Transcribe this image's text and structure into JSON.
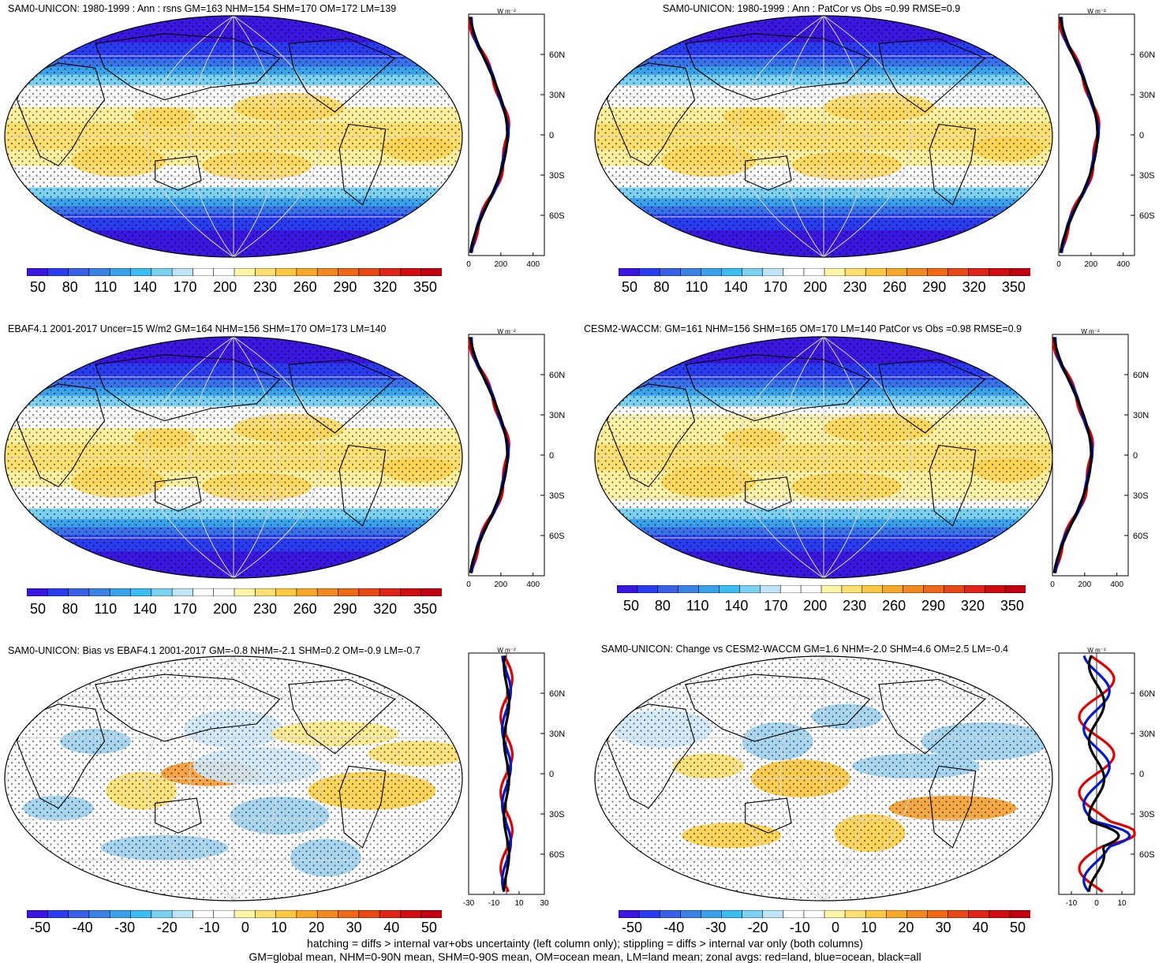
{
  "colors": {
    "mean_scale": [
      "#3a16e0",
      "#2a3cf0",
      "#3a60e8",
      "#3a82e6",
      "#3aa2ea",
      "#3cbdf2",
      "#7cd0f0",
      "#bfe4f6",
      "#ffffff",
      "#ffffff",
      "#fff4a8",
      "#ffe070",
      "#fcc840",
      "#f8a828",
      "#f48820",
      "#ee6818",
      "#e84818",
      "#e02418",
      "#d00c10",
      "#c00010"
    ],
    "diff_scale": [
      "#3a16e0",
      "#2a3cf0",
      "#3a60e8",
      "#3a82e6",
      "#3aa2ea",
      "#3cbdf2",
      "#7cd0f0",
      "#bfe4f6",
      "#ffffff",
      "#ffffff",
      "#fff4a8",
      "#ffe070",
      "#fcc840",
      "#f8a828",
      "#f48820",
      "#ee6818",
      "#e84818",
      "#e02418",
      "#d00c10",
      "#c00010"
    ],
    "land_line": "#e00000",
    "ocean_line": "#0018d0",
    "all_line": "#000000"
  },
  "panels": [
    {
      "title": "SAM0-UNICON: 1980-1999 : Ann : rsns GM=163 NHM=154 SHM=170 OM=172 LM=139",
      "kind": "mean",
      "colorbar_labels": [
        "50",
        "80",
        "110",
        "140",
        "170",
        "200",
        "230",
        "260",
        "290",
        "320",
        "350"
      ],
      "zonal": {
        "unit": "W m⁻²",
        "xticks": [
          "0",
          "200",
          "400"
        ],
        "yticks": [
          "60N",
          "30N",
          "0",
          "30S",
          "60S"
        ]
      }
    },
    {
      "title": "SAM0-UNICON: 1980-1999 : Ann : PatCor vs Obs =0.99 RMSE=0.9",
      "kind": "mean",
      "colorbar_labels": [
        "50",
        "80",
        "110",
        "140",
        "170",
        "200",
        "230",
        "260",
        "290",
        "320",
        "350"
      ],
      "zonal": {
        "unit": "W m⁻²",
        "xticks": [
          "0",
          "200",
          "400"
        ],
        "yticks": [
          "60N",
          "30N",
          "0",
          "30S",
          "60S"
        ]
      }
    },
    {
      "title": "EBAF4.1 2001-2017 Uncer=15 W/m2 GM=164 NHM=156 SHM=170 OM=173 LM=140",
      "kind": "mean",
      "colorbar_labels": [
        "50",
        "80",
        "110",
        "140",
        "170",
        "200",
        "230",
        "260",
        "290",
        "320",
        "350"
      ],
      "zonal": {
        "unit": "W m⁻²",
        "xticks": [
          "0",
          "200",
          "400"
        ],
        "yticks": [
          "60N",
          "30N",
          "0",
          "30S",
          "60S"
        ]
      }
    },
    {
      "title": "CESM2-WACCM: GM=161 NHM=156 SHM=165 OM=170 LM=140 PatCor vs Obs =0.98 RMSE=0.9",
      "kind": "mean",
      "colorbar_labels": [
        "50",
        "80",
        "110",
        "140",
        "170",
        "200",
        "230",
        "260",
        "290",
        "320",
        "350"
      ],
      "zonal": {
        "unit": "W m⁻²",
        "xticks": [
          "0",
          "200",
          "400"
        ],
        "yticks": [
          "60N",
          "30N",
          "0",
          "30S",
          "60S"
        ]
      }
    },
    {
      "title": "SAM0-UNICON: Bias vs EBAF4.1 2001-2017 GM=-0.8 NHM=-2.1 SHM=0.2 OM=-0.9 LM=-0.7",
      "kind": "diff",
      "colorbar_labels": [
        "-50",
        "-40",
        "-30",
        "-20",
        "-10",
        "0",
        "10",
        "20",
        "30",
        "40",
        "50"
      ],
      "zonal": {
        "unit": "W m⁻²",
        "xticks": [
          "-30",
          "-10",
          "10",
          "30"
        ],
        "yticks": [
          "60N",
          "30N",
          "0",
          "30S",
          "60S"
        ]
      }
    },
    {
      "title": "SAM0-UNICON: Change vs CESM2-WACCM GM=1.6 NHM=-2.0 SHM=4.6 OM=2.5 LM=-0.4",
      "kind": "diff",
      "colorbar_labels": [
        "-50",
        "-40",
        "-30",
        "-20",
        "-10",
        "0",
        "10",
        "20",
        "30",
        "40",
        "50"
      ],
      "zonal": {
        "unit": "W m⁻²",
        "xticks": [
          "-10",
          "0",
          "10"
        ],
        "yticks": [
          "60N",
          "30N",
          "0",
          "30S",
          "60S"
        ]
      }
    }
  ],
  "footer": {
    "line1": "hatching = diffs > internal var+obs uncertainty (left column only); stippling = diffs > internal var only (both columns)",
    "line2": "GM=global mean, NHM=0-90N mean, SHM=0-90S mean, OM=ocean mean, LM=land mean; zonal avgs: red=land, blue=ocean, black=all"
  }
}
